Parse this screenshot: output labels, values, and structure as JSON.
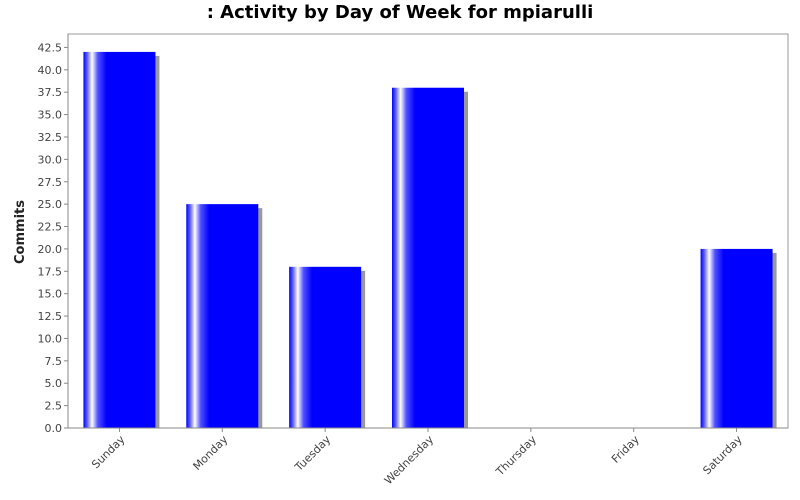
{
  "chart_data": {
    "type": "bar",
    "title": ": Activity by Day of Week for mpiarulli",
    "xlabel": "",
    "ylabel": "Commits",
    "categories": [
      "Sunday",
      "Monday",
      "Tuesday",
      "Wednesday",
      "Thursday",
      "Friday",
      "Saturday"
    ],
    "values": [
      42,
      25,
      18,
      38,
      0,
      0,
      20
    ],
    "ylim": [
      0,
      44
    ],
    "yticks": [
      "0.0",
      "2.5",
      "5.0",
      "7.5",
      "10.0",
      "12.5",
      "15.0",
      "17.5",
      "20.0",
      "22.5",
      "25.0",
      "27.5",
      "30.0",
      "32.5",
      "35.0",
      "37.5",
      "40.0",
      "42.5"
    ],
    "grid": false,
    "legend": "none",
    "bar_color": "#0000ff",
    "shadow_color": "#999999"
  }
}
